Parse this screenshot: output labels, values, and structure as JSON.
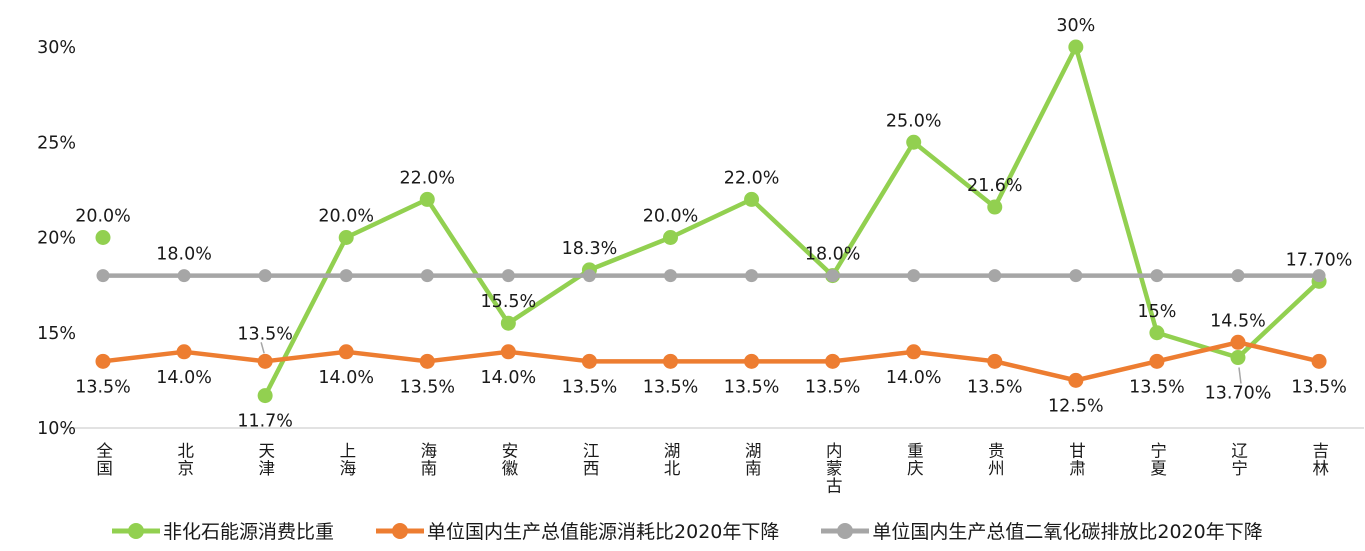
{
  "chart_data": {
    "type": "line",
    "title": "",
    "categories": [
      "全国",
      "北京",
      "天津",
      "上海",
      "海南",
      "安徽",
      "江西",
      "湖北",
      "湖南",
      "内蒙古",
      "重庆",
      "贵州",
      "甘肃",
      "宁夏",
      "辽宁",
      "吉林"
    ],
    "y_axis": {
      "min": 10,
      "max": 30,
      "unit": "%",
      "ticks": [
        {
          "value": 30,
          "label": "30%"
        },
        {
          "value": 25,
          "label": "25%"
        },
        {
          "value": 20,
          "label": "20%"
        },
        {
          "value": 15,
          "label": "15%"
        },
        {
          "value": 10,
          "label": "10%"
        }
      ]
    },
    "grid": false,
    "legend_position": "bottom",
    "axis_line_color": "#d9d9d9",
    "text_color": "#1a1a1a",
    "leader_line_color": "#a6a6a6",
    "series": [
      {
        "name": "非化石能源消费比重",
        "color": "#92d050",
        "values": [
          20.0,
          null,
          11.7,
          20.0,
          22.0,
          15.5,
          18.3,
          20.0,
          22.0,
          18.0,
          25.0,
          21.6,
          30,
          15,
          13.7,
          17.7
        ],
        "labels": [
          "20.0%",
          null,
          "11.7%",
          "20.0%",
          "22.0%",
          "15.5%",
          "18.3%",
          "20.0%",
          "22.0%",
          "18.0%",
          "25.0%",
          "21.6%",
          "30%",
          "15%",
          "13.70%",
          "17.70%"
        ],
        "label_pos": [
          "above",
          null,
          "below",
          "above",
          "above",
          "above",
          "above",
          "above",
          "above",
          "above",
          "above",
          "above",
          "above",
          "above",
          "below-leader",
          "above"
        ]
      },
      {
        "name": "单位国内生产总值能源消耗比2020年下降",
        "color": "#ed7d31",
        "values": [
          13.5,
          14.0,
          13.5,
          14.0,
          13.5,
          14.0,
          13.5,
          13.5,
          13.5,
          13.5,
          14.0,
          13.5,
          12.5,
          13.5,
          14.5,
          13.5
        ],
        "labels": [
          "13.5%",
          "14.0%",
          "13.5%",
          "14.0%",
          "13.5%",
          "14.0%",
          "13.5%",
          "13.5%",
          "13.5%",
          "13.5%",
          "14.0%",
          "13.5%",
          "12.5%",
          "13.5%",
          "14.5%",
          "13.5%"
        ],
        "label_pos": [
          "below",
          "below",
          "above-leader",
          "below",
          "below",
          "below",
          "below",
          "below",
          "below",
          "below",
          "below",
          "below",
          "below",
          "below",
          "above",
          "below"
        ]
      },
      {
        "name": "单位国内生产总值二氧化碳排放比2020年下降",
        "color": "#a6a6a6",
        "values": [
          18,
          18,
          18,
          18,
          18,
          18,
          18,
          18,
          18,
          18,
          18,
          18,
          18,
          18,
          18,
          18
        ],
        "labels": [
          null,
          "18.0%",
          null,
          null,
          null,
          null,
          null,
          null,
          null,
          null,
          null,
          null,
          null,
          null,
          null,
          null
        ],
        "label_pos": [
          null,
          "above",
          null,
          null,
          null,
          null,
          null,
          null,
          null,
          null,
          null,
          null,
          null,
          null,
          null,
          null
        ]
      }
    ]
  }
}
